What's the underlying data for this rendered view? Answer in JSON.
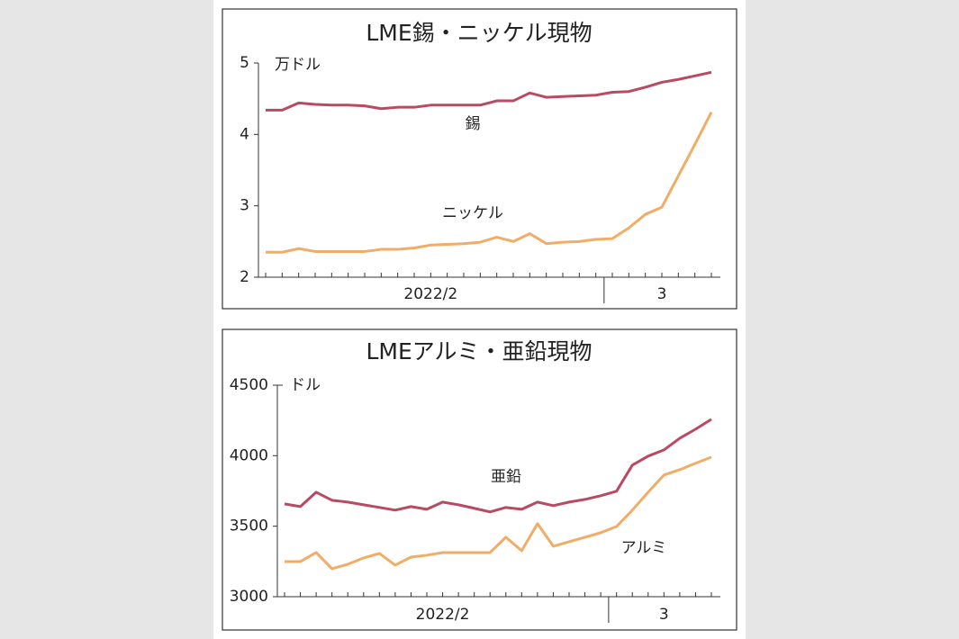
{
  "chart_data": [
    {
      "type": "line",
      "title": "LME錫・ニッケル現物",
      "y_unit": "万ドル",
      "categories": [
        null,
        null,
        null,
        null,
        null,
        null,
        null,
        null,
        null,
        null,
        null,
        null,
        null,
        null,
        null,
        null,
        null,
        null,
        null,
        null,
        null,
        null,
        null,
        null,
        null,
        null,
        null,
        null
      ],
      "periods": [
        {
          "label": "2022/2",
          "count": 21
        },
        {
          "label": "3",
          "count": 7
        }
      ],
      "ylim": [
        2,
        5
      ],
      "yticks": [
        2,
        3,
        4,
        5
      ],
      "grid": false,
      "series": [
        {
          "name": "錫",
          "color": "#b94a62",
          "values": [
            4.34,
            4.34,
            4.44,
            4.42,
            4.41,
            4.41,
            4.4,
            4.36,
            4.38,
            4.38,
            4.41,
            4.41,
            4.41,
            4.41,
            4.47,
            4.47,
            4.58,
            4.52,
            4.53,
            4.54,
            4.55,
            4.59,
            4.6,
            4.66,
            4.73,
            4.77,
            4.82,
            4.87
          ]
        },
        {
          "name": "ニッケル",
          "color": "#f0ad68",
          "values": [
            2.35,
            2.35,
            2.4,
            2.36,
            2.36,
            2.36,
            2.36,
            2.39,
            2.39,
            2.41,
            2.45,
            2.46,
            2.47,
            2.49,
            2.56,
            2.5,
            2.61,
            2.47,
            2.49,
            2.5,
            2.53,
            2.54,
            2.69,
            2.88,
            2.98,
            3.42,
            3.86,
            4.31
          ]
        }
      ]
    },
    {
      "type": "line",
      "title": "LMEアルミ・亜鉛現物",
      "y_unit": "ドル",
      "categories": [
        null,
        null,
        null,
        null,
        null,
        null,
        null,
        null,
        null,
        null,
        null,
        null,
        null,
        null,
        null,
        null,
        null,
        null,
        null,
        null,
        null,
        null,
        null,
        null,
        null,
        null,
        null,
        null
      ],
      "periods": [
        {
          "label": "2022/2",
          "count": 21
        },
        {
          "label": "3",
          "count": 7
        }
      ],
      "ylim": [
        3000,
        4500
      ],
      "yticks": [
        3000,
        3500,
        4000,
        4500
      ],
      "grid": false,
      "series": [
        {
          "name": "亜鉛",
          "color": "#b94a62",
          "values": [
            3658,
            3639,
            3741,
            3684,
            3671,
            3652,
            3633,
            3614,
            3639,
            3620,
            3671,
            3652,
            3627,
            3601,
            3633,
            3620,
            3671,
            3646,
            3671,
            3690,
            3716,
            3748,
            3933,
            3997,
            4041,
            4124,
            4188,
            4258
          ]
        },
        {
          "name": "アルミ",
          "color": "#f0ad68",
          "values": [
            3249,
            3249,
            3313,
            3198,
            3230,
            3275,
            3307,
            3224,
            3281,
            3294,
            3313,
            3313,
            3313,
            3313,
            3422,
            3326,
            3518,
            3358,
            3390,
            3422,
            3454,
            3498,
            3614,
            3741,
            3863,
            3901,
            3946,
            3990
          ]
        }
      ]
    }
  ]
}
